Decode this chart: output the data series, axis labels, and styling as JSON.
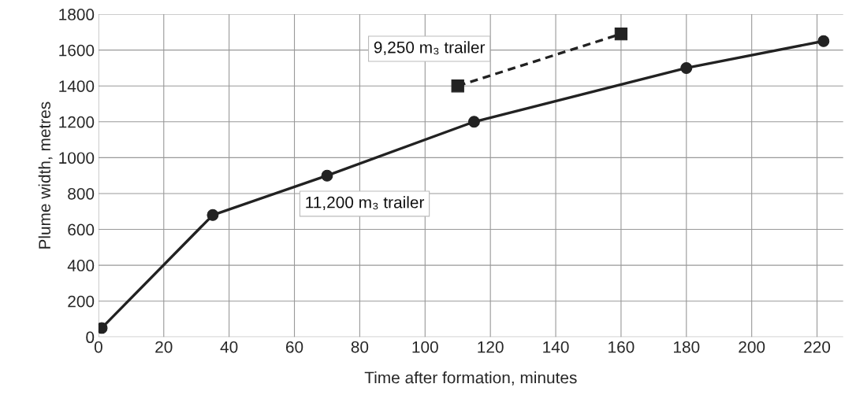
{
  "chart_data": {
    "type": "line",
    "xlabel": "Time after formation, minutes",
    "ylabel": "Plume width, metres",
    "series": [
      {
        "name": "11,200 m₃ trailer",
        "color": "#222222",
        "marker": "circle",
        "line_style": "solid",
        "x": [
          1,
          35,
          70,
          115,
          180,
          222
        ],
        "values": [
          50,
          680,
          900,
          1200,
          1500,
          1650
        ]
      },
      {
        "name": "9,250 m₃ trailer",
        "color": "#222222",
        "marker": "square",
        "line_style": "dashed",
        "x": [
          110,
          160
        ],
        "values": [
          1400,
          1690
        ]
      }
    ],
    "xlim": [
      0,
      228
    ],
    "xticks": [
      0,
      20,
      40,
      60,
      80,
      100,
      120,
      140,
      160,
      180,
      200,
      220
    ],
    "ylim": [
      0,
      1800
    ],
    "yticks": [
      0,
      200,
      400,
      600,
      800,
      1000,
      1200,
      1400,
      1600,
      1800
    ],
    "grid": true,
    "legend": false
  }
}
